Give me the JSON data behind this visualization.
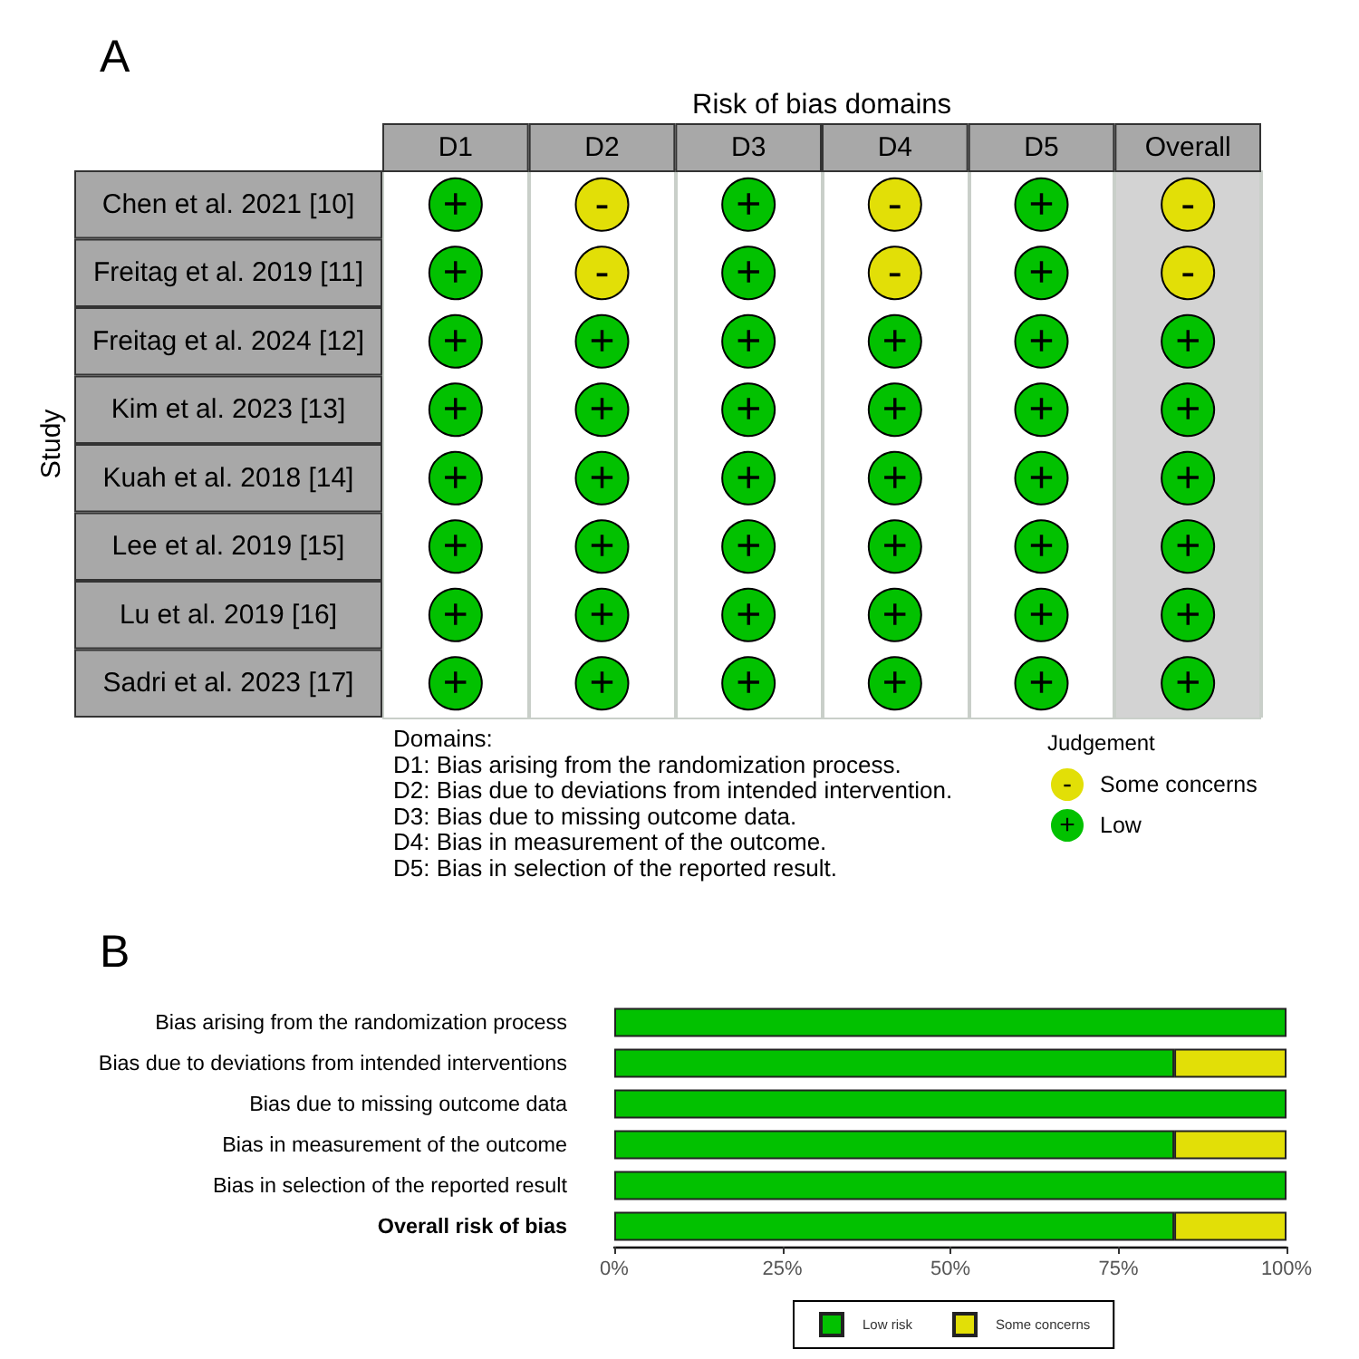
{
  "chart_data": [
    {
      "type": "heatmap",
      "title": "A",
      "xlabel": "Risk of bias domains",
      "ylabel": "Study",
      "categories": [
        "D1",
        "D2",
        "D3",
        "D4",
        "D5",
        "Overall"
      ],
      "y_categories": [
        "Chen et al. 2021 [10]",
        "Freitag et al. 2019 [11]",
        "Freitag et al. 2024 [12]",
        "Kim et al. 2023 [13]",
        "Kuah et al. 2018 [14]",
        "Lee et al. 2019 [15]",
        "Lu et al. 2019 [16]",
        "Sadri et al. 2023 [17]"
      ],
      "cells": [
        [
          "+",
          "-",
          "+",
          "-",
          "+",
          "-"
        ],
        [
          "+",
          "-",
          "+",
          "-",
          "+",
          "-"
        ],
        [
          "+",
          "+",
          "+",
          "+",
          "+",
          "+"
        ],
        [
          "+",
          "+",
          "+",
          "+",
          "+",
          "+"
        ],
        [
          "+",
          "+",
          "+",
          "+",
          "+",
          "+"
        ],
        [
          "+",
          "+",
          "+",
          "+",
          "+",
          "+"
        ],
        [
          "+",
          "+",
          "+",
          "+",
          "+",
          "+"
        ],
        [
          "+",
          "+",
          "+",
          "+",
          "+",
          "+"
        ]
      ],
      "clabel": "Judgement",
      "cticks": [
        {
          "value": "-",
          "label": "Some concerns"
        },
        {
          "value": "+",
          "label": "Low"
        }
      ],
      "colors": [
        "#e2df07",
        "#02c100"
      ],
      "grid": true,
      "annotations": [
        "Domains:",
        "D1: Bias arising from the randomization process.",
        "D2: Bias due to deviations from intended intervention.",
        "D3: Bias due to missing outcome data.",
        "D4: Bias in measurement of the outcome.",
        "D5: Bias in selection of the reported result."
      ]
    },
    {
      "type": "bar",
      "title": "B",
      "orientation": "horizontal",
      "stacked": true,
      "categories": [
        "Bias arising from the randomization process",
        "Bias due to deviations from intended interventions",
        "Bias due to missing outcome data",
        "Bias in measurement of the outcome",
        "Bias in selection of the reported result",
        "Overall risk of bias"
      ],
      "series": [
        {
          "name": "Low risk",
          "color": "#02c100",
          "values": [
            100,
            83.3,
            100,
            83.3,
            100,
            83.3
          ]
        },
        {
          "name": "Some concerns",
          "color": "#e2df07",
          "values": [
            0,
            16.7,
            0,
            16.7,
            0,
            16.7
          ]
        }
      ],
      "xlim": [
        0,
        100
      ],
      "xticks": [
        {
          "value": 0,
          "label": "0%"
        },
        {
          "value": 25,
          "label": "25%"
        },
        {
          "value": 50,
          "label": "50%"
        },
        {
          "value": 75,
          "label": "75%"
        },
        {
          "value": 100,
          "label": "100%"
        }
      ],
      "legend": "bottom",
      "grid": false
    }
  ]
}
